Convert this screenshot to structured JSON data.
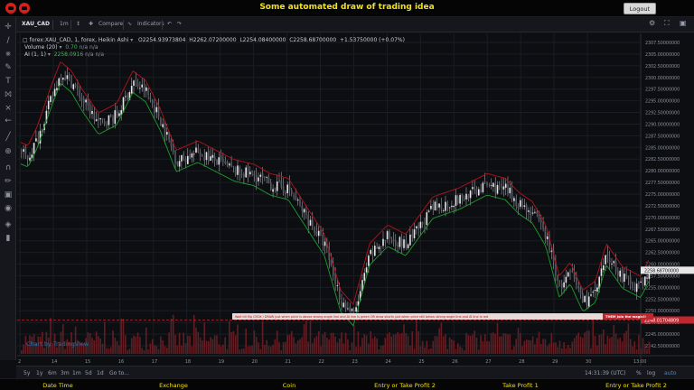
{
  "header": {
    "title": "Some automated draw of trading idea",
    "logout_label": "Logout"
  },
  "toolbar": {
    "symbol": "XAU_CAD",
    "interval": "1m",
    "compare_label": "Compare",
    "indicators_label": "Indicators"
  },
  "legend": {
    "series_name": "forex:XAU_CAD, 1, forex, Heikin Ashi",
    "open": "O2254.93973804",
    "high": "H2262.07200000",
    "low": "L2254.08400000",
    "close": "C2258.68700000",
    "change": "+1.53750000 (+0.07%)",
    "volume_label": "Volume (20)",
    "volume_value": "0.70",
    "volume_na1": "n/a",
    "volume_na2": "n/a",
    "ai_label": "AI (1, 1)",
    "ai_value": "2258.0916",
    "ai_na1": "n/a",
    "ai_na2": "n/a"
  },
  "watermark": "Chart by TradingView",
  "banner": {
    "text": "Wait till flip CROX  /   DRAW just when   price is above strong angle line and AI line is green       OR        draw shorts just when price still below strong angle line and AI line is red",
    "button": "THEM Join the magic!!"
  },
  "current_price": "2258.68700000",
  "marker_price": "2248.01704809",
  "price_axis": {
    "labels": [
      "2307.50000000",
      "2305.00000000",
      "2302.50000000",
      "2300.00000000",
      "2297.50000000",
      "2295.00000000",
      "2292.50000000",
      "2290.00000000",
      "2287.50000000",
      "2285.00000000",
      "2282.50000000",
      "2280.00000000",
      "2277.50000000",
      "2275.00000000",
      "2272.50000000",
      "2270.00000000",
      "2267.50000000",
      "2265.00000000",
      "2262.50000000",
      "2260.00000000",
      "2257.50000000",
      "2255.00000000",
      "2252.50000000",
      "2250.00000000",
      "2247.50000000",
      "2245.00000000",
      "2242.50000000"
    ]
  },
  "time_axis": {
    "labels": [
      "2",
      "14",
      "15",
      "16",
      "17",
      "18",
      "19",
      "20",
      "21",
      "22",
      "23",
      "24",
      "25",
      "26",
      "27",
      "28",
      "29",
      "30",
      "13:00"
    ]
  },
  "range_bar": {
    "ranges": [
      "5y",
      "1y",
      "6m",
      "3m",
      "1m",
      "5d",
      "1d",
      "Go to..."
    ],
    "time": "14:31:39 (UTC)",
    "pct": "%",
    "log": "log",
    "auto": "auto"
  },
  "footer": {
    "columns": [
      "Date Time",
      "Exchange",
      "Coin",
      "Entry or Take Profit 2",
      "Take Profit 1",
      "Entry or Take Profit 2"
    ]
  },
  "colors": {
    "up": "#e6e6e6",
    "down": "#555a63",
    "ai_green": "#1e9d2e",
    "ai_red": "#b3141b",
    "volume": "#6b1f25",
    "accent": "#f2e21b"
  }
}
